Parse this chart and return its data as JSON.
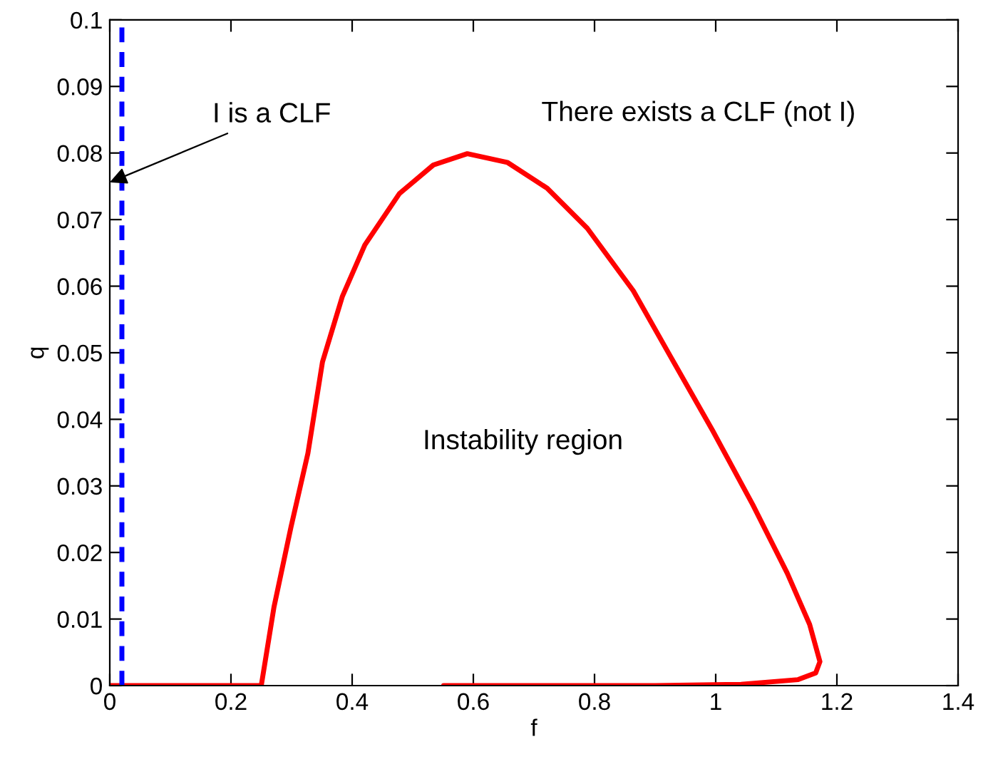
{
  "chart_data": {
    "type": "line",
    "xlabel": "f",
    "ylabel": "q",
    "x": [
      0,
      0.25,
      0.271,
      0.299,
      0.327,
      0.351,
      0.384,
      0.421,
      0.478,
      0.534,
      0.59,
      0.656,
      0.722,
      0.788,
      0.864,
      0.925,
      0.995,
      1.061,
      1.118,
      1.155,
      1.172,
      1.165,
      1.136,
      1.042,
      0.9,
      0.551
    ],
    "series": [
      {
        "color": "#ff0000",
        "values": [
          0,
          0,
          0.0118,
          0.0238,
          0.0349,
          0.0486,
          0.0585,
          0.0662,
          0.0739,
          0.0782,
          0.0799,
          0.0786,
          0.0747,
          0.0687,
          0.0593,
          0.0495,
          0.0383,
          0.0272,
          0.0169,
          0.0092,
          0.0036,
          0.0019,
          0.0009,
          0.0002,
          0,
          0
        ]
      }
    ],
    "ref_lines": [
      {
        "axis": "x",
        "value": 0.02,
        "color": "#0000ff",
        "line_style": "dashed"
      }
    ],
    "annotations": [
      "I is a CLF",
      "There exists a CLF (not I)",
      "Instability region"
    ],
    "xlim": [
      0,
      1.4
    ],
    "ylim": [
      0,
      0.1
    ],
    "xticks": [
      0,
      0.2,
      0.4,
      0.6,
      0.8,
      1,
      1.2,
      1.4
    ],
    "yticks": [
      0,
      0.01,
      0.02,
      0.03,
      0.04,
      0.05,
      0.06,
      0.07,
      0.08,
      0.09,
      0.1
    ],
    "grid": false,
    "legend": false,
    "marker": "none",
    "line_style": "solid"
  }
}
